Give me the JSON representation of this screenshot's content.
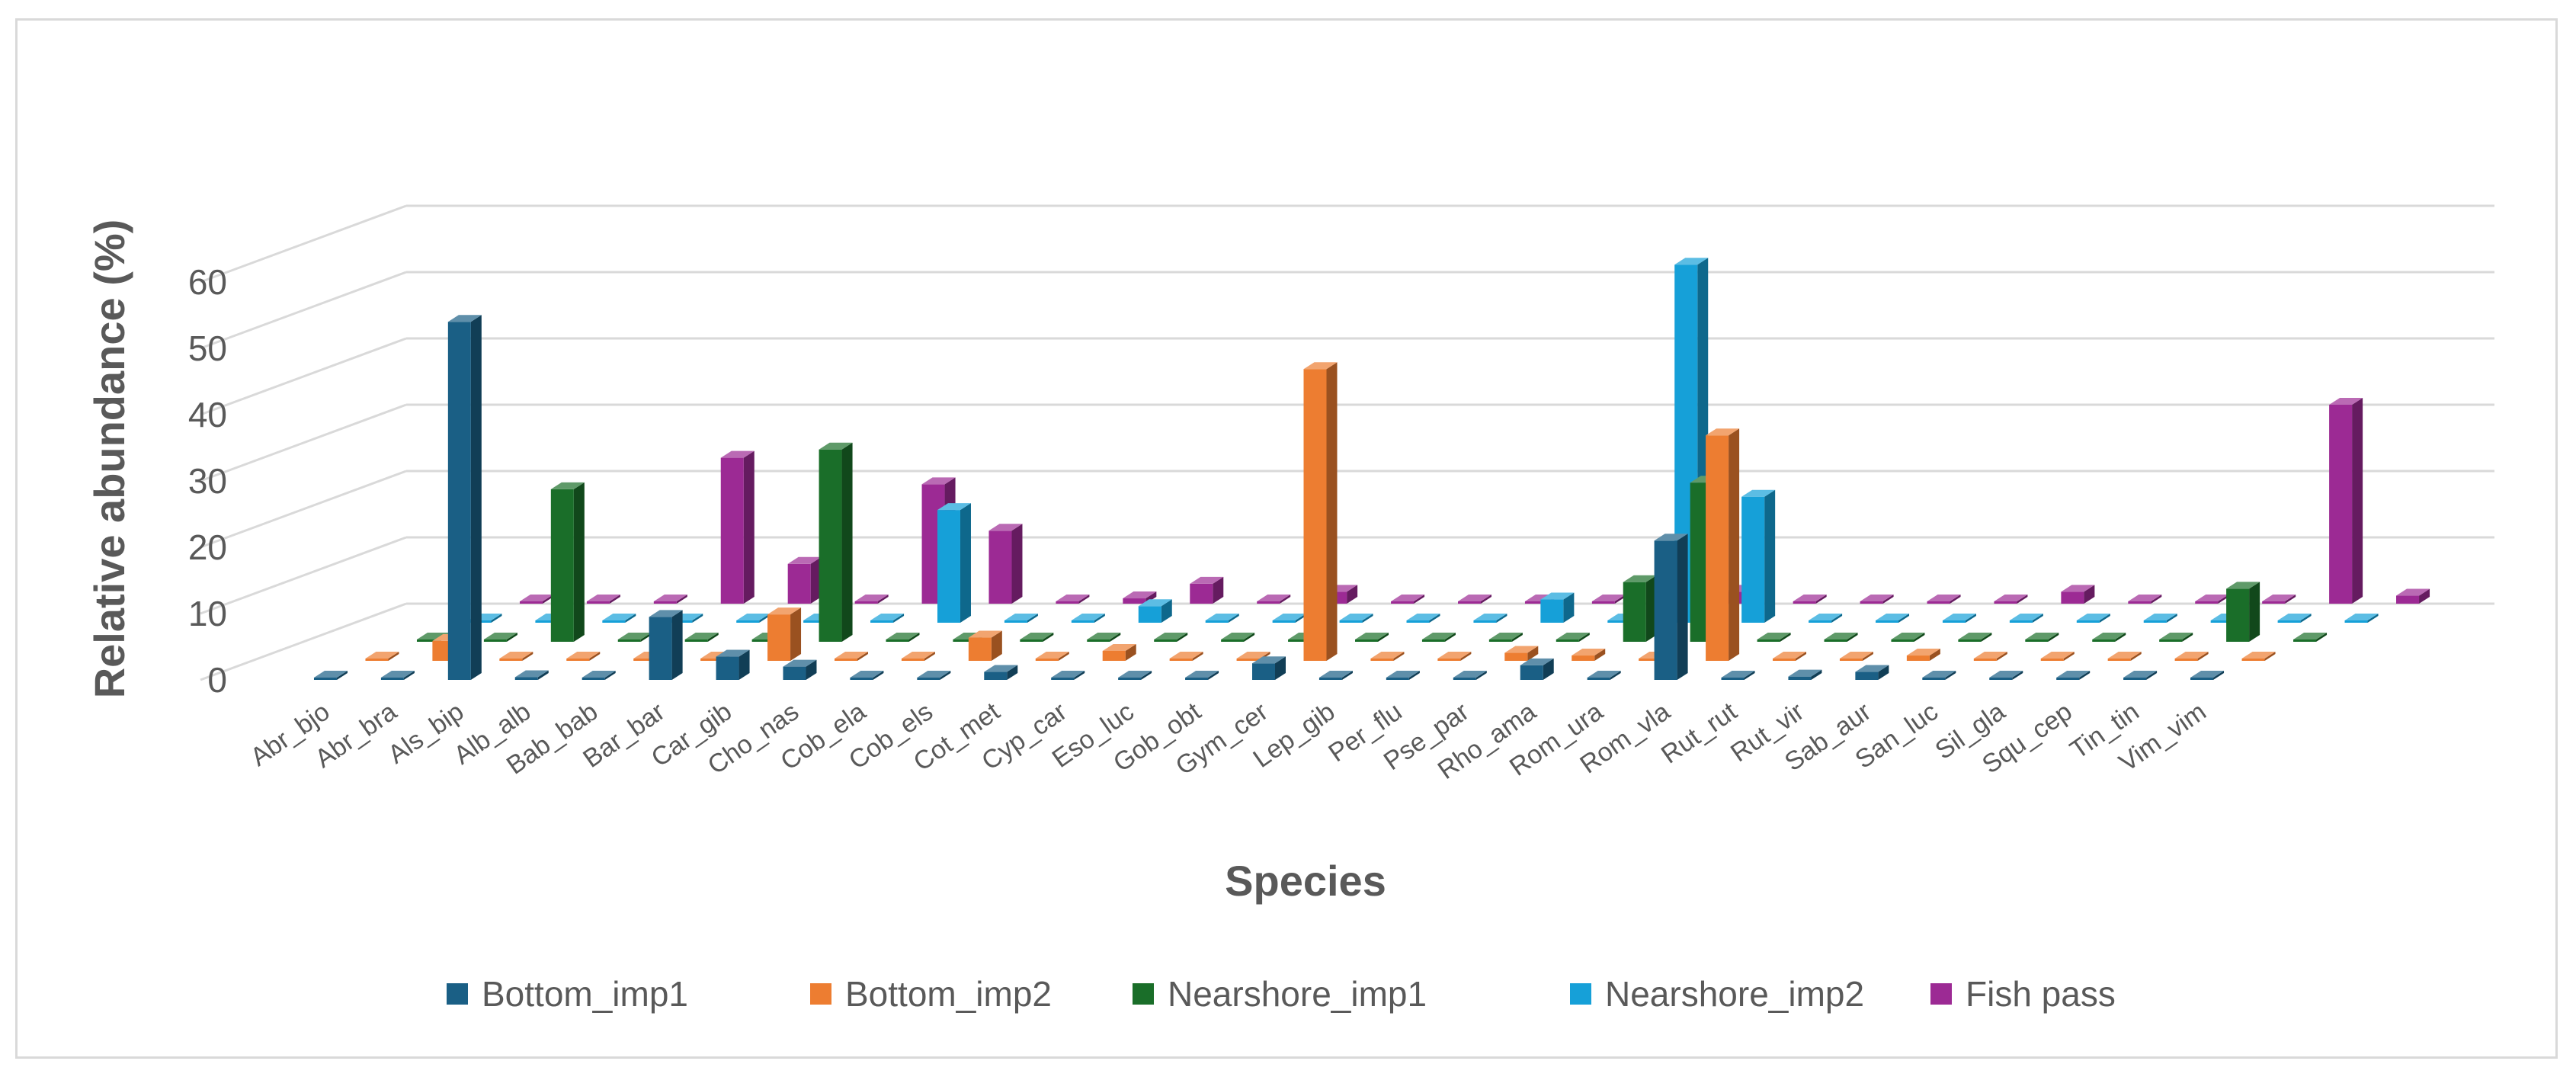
{
  "chart_data": {
    "type": "bar",
    "subtype": "3d-column",
    "title": "",
    "xlabel": "Species",
    "ylabel": "Relative abundance (%)",
    "ylim": [
      0,
      60
    ],
    "yticks": [
      "0",
      "10",
      "20",
      "30",
      "40",
      "50",
      "60"
    ],
    "grid": true,
    "legend_position": "bottom",
    "categories": [
      "Abr_bjo",
      "Abr_bra",
      "Als_bip",
      "Alb_alb",
      "Bab_bab",
      "Bar_bar",
      "Car_gib",
      "Cho_nas",
      "Cob_ela",
      "Cob_els",
      "Cot_met",
      "Cyp_car",
      "Eso_luc",
      "Gob_obt",
      "Gym_cer",
      "Lep_gib",
      "Per_flu",
      "Pse_par",
      "Rho_ama",
      "Rom_ura",
      "Rom_vla",
      "Rut_rut",
      "Rut_vir",
      "Sab_aur",
      "San_luc",
      "Sil_gla",
      "Squ_cep",
      "Tin_tin",
      "Vim_vim"
    ],
    "series": [
      {
        "name": "Bottom_imp1",
        "color": "#1a5f85",
        "values": [
          0,
          0,
          54,
          0.4,
          0,
          9.5,
          3.5,
          2,
          0,
          0,
          1.2,
          0,
          0,
          0,
          2.5,
          0,
          0,
          0,
          2.2,
          0,
          21,
          0,
          0.5,
          1.2,
          0,
          0,
          0,
          0,
          0
        ]
      },
      {
        "name": "Bottom_imp2",
        "color": "#ed7d31",
        "values": [
          0,
          3,
          0,
          0,
          0,
          0,
          7,
          0,
          0,
          3.5,
          0,
          1.5,
          0,
          0,
          44,
          0,
          0,
          1.2,
          0.8,
          0,
          34,
          0,
          0,
          0.8,
          0,
          0,
          0,
          0,
          0
        ]
      },
      {
        "name": "Nearshore_imp1",
        "color": "#1a6e29",
        "values": [
          0,
          0,
          23,
          0,
          0,
          0,
          29,
          0,
          0,
          0,
          0,
          0,
          0,
          0,
          0,
          0,
          0,
          0,
          9,
          24,
          0,
          0,
          0,
          0,
          0,
          0,
          0,
          8,
          0
        ]
      },
      {
        "name": "Nearshore_imp2",
        "color": "#16a0d8",
        "values": [
          0,
          0,
          0,
          0,
          0,
          0,
          0,
          17,
          0,
          0,
          2.5,
          0,
          0,
          0,
          0,
          0,
          3.5,
          0,
          54,
          19,
          0,
          0,
          0,
          0,
          0,
          0,
          0,
          0,
          0
        ]
      },
      {
        "name": "Fish pass",
        "color": "#9c2a94",
        "values": [
          0,
          0,
          0,
          22,
          6,
          0,
          18,
          11,
          0,
          0.8,
          3,
          0,
          1.8,
          0,
          0,
          0,
          0,
          0,
          1.8,
          0,
          0,
          0,
          0,
          1.8,
          0,
          0,
          0,
          30,
          1.2
        ]
      }
    ]
  }
}
